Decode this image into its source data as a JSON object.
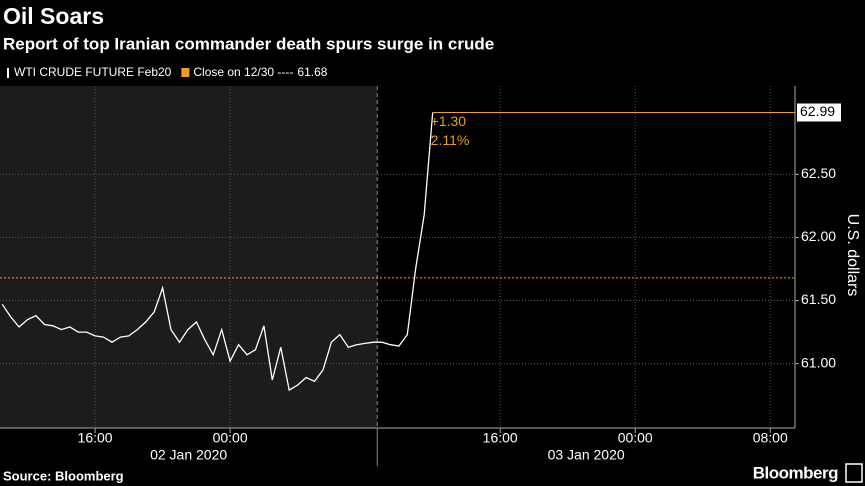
{
  "chart_data": {
    "type": "line",
    "title": "Oil Soars",
    "subtitle": "Report of top Iranian commander death spurs surge in crude",
    "y_label": "U.S. dollars",
    "source": "Source: Bloomberg",
    "brand": "Bloomberg",
    "x": [
      "2020-01-02 10:30",
      "2020-01-02 11:00",
      "2020-01-02 11:30",
      "2020-01-02 12:00",
      "2020-01-02 12:30",
      "2020-01-02 13:00",
      "2020-01-02 13:30",
      "2020-01-02 14:00",
      "2020-01-02 14:30",
      "2020-01-02 15:00",
      "2020-01-02 15:30",
      "2020-01-02 16:00",
      "2020-01-02 16:30",
      "2020-01-02 17:00",
      "2020-01-02 17:30",
      "2020-01-02 18:00",
      "2020-01-02 18:30",
      "2020-01-02 19:00",
      "2020-01-02 19:30",
      "2020-01-02 20:00",
      "2020-01-02 20:30",
      "2020-01-02 21:00",
      "2020-01-02 21:30",
      "2020-01-02 22:00",
      "2020-01-02 22:30",
      "2020-01-02 23:00",
      "2020-01-02 23:30",
      "2020-01-03 00:00",
      "2020-01-03 00:30",
      "2020-01-03 01:00",
      "2020-01-03 01:30",
      "2020-01-03 02:00",
      "2020-01-03 02:30",
      "2020-01-03 03:00",
      "2020-01-03 03:30",
      "2020-01-03 04:00",
      "2020-01-03 04:30",
      "2020-01-03 05:00",
      "2020-01-03 05:30",
      "2020-01-03 06:00",
      "2020-01-03 06:30",
      "2020-01-03 07:00",
      "2020-01-03 07:30",
      "2020-01-03 08:00",
      "2020-01-03 08:30",
      "2020-01-03 09:00",
      "2020-01-03 09:30",
      "2020-01-03 10:00",
      "2020-01-03 10:30",
      "2020-01-03 11:00",
      "2020-01-03 11:30",
      "2020-01-03 12:00"
    ],
    "series": [
      {
        "name": "WTI CRUDE FUTURE Feb20",
        "color": "#ffffff",
        "values": [
          61.47,
          61.37,
          61.29,
          61.35,
          61.38,
          61.31,
          61.3,
          61.27,
          61.29,
          61.25,
          61.25,
          61.22,
          61.21,
          61.17,
          61.21,
          61.22,
          61.27,
          61.33,
          61.41,
          61.6,
          61.27,
          61.17,
          61.27,
          61.33,
          61.19,
          61.07,
          61.27,
          61.02,
          61.15,
          61.07,
          61.11,
          61.3,
          60.87,
          61.13,
          60.79,
          60.83,
          60.89,
          60.86,
          60.95,
          61.17,
          61.23,
          61.13,
          61.15,
          61.16,
          61.17,
          61.17,
          61.15,
          61.14,
          61.23,
          61.76,
          62.18,
          62.99
        ]
      }
    ],
    "reference": {
      "name": "Close on 12/30 ----",
      "value": 61.68,
      "color": "#f39c1f"
    },
    "annotations": [
      "+1.30",
      "2.11%"
    ],
    "date_labels": [
      "02 Jan 2020",
      "03 Jan 2020"
    ],
    "shaded_until": "2020-01-03 08:43",
    "xlim": [
      "2020-01-02 10:22",
      "2020-01-04 09:28"
    ],
    "xticks": [
      {
        "value": "2020-01-02 16:00",
        "label": "16:00"
      },
      {
        "value": "2020-01-03 00:00",
        "label": "00:00"
      },
      {
        "value": "2020-01-03 16:00",
        "label": "16:00"
      },
      {
        "value": "2020-01-04 00:00",
        "label": "00:00"
      },
      {
        "value": "2020-01-04 08:00",
        "label": "08:00"
      }
    ],
    "ylim": [
      60.49,
      63.2
    ],
    "yticks": [
      {
        "value": 61,
        "label": "61.00"
      },
      {
        "value": 61.5,
        "label": "61.50"
      },
      {
        "value": 62,
        "label": "62.00"
      },
      {
        "value": 62.5,
        "label": "62.50"
      }
    ],
    "grid": true
  }
}
